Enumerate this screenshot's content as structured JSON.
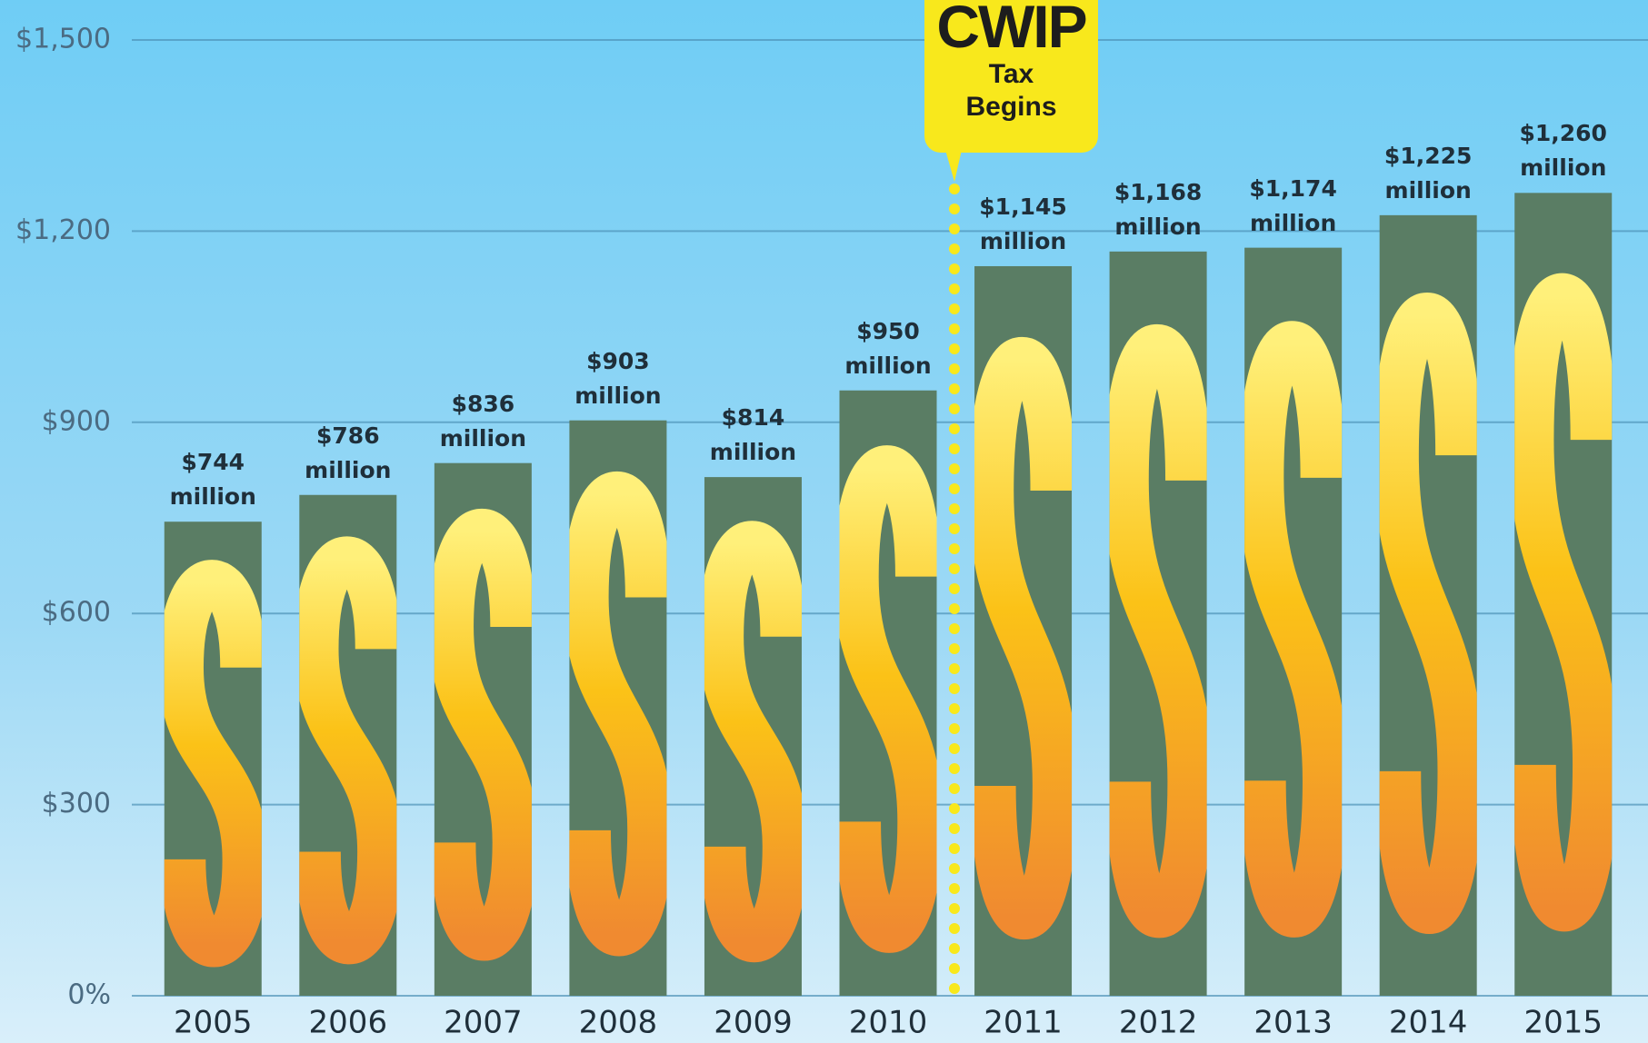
{
  "chart_data": {
    "type": "bar",
    "categories": [
      "2005",
      "2006",
      "2007",
      "2008",
      "2009",
      "2010",
      "2011",
      "2012",
      "2013",
      "2014",
      "2015"
    ],
    "values": [
      744,
      786,
      836,
      903,
      814,
      950,
      1145,
      1168,
      1174,
      1225,
      1260
    ],
    "value_labels": [
      "$744 million",
      "$786 million",
      "$836 million",
      "$903 million",
      "$814 million",
      "$950 million",
      "$1,145 million",
      "$1,168 million",
      "$1,174 million",
      "$1,225 million",
      "$1,260 million"
    ],
    "color": "#5a7d64",
    "ylim": [
      0,
      1500
    ],
    "yticks": [
      {
        "value": 0,
        "label": "0%"
      },
      {
        "value": 300,
        "label": "$300"
      },
      {
        "value": 600,
        "label": "$600"
      },
      {
        "value": 900,
        "label": "$900"
      },
      {
        "value": 1200,
        "label": "$1,200"
      },
      {
        "value": 1500,
        "label": "$1,500"
      }
    ],
    "grid": true,
    "annotation": {
      "title": "CWIP",
      "text": "Tax Begins"
    }
  }
}
